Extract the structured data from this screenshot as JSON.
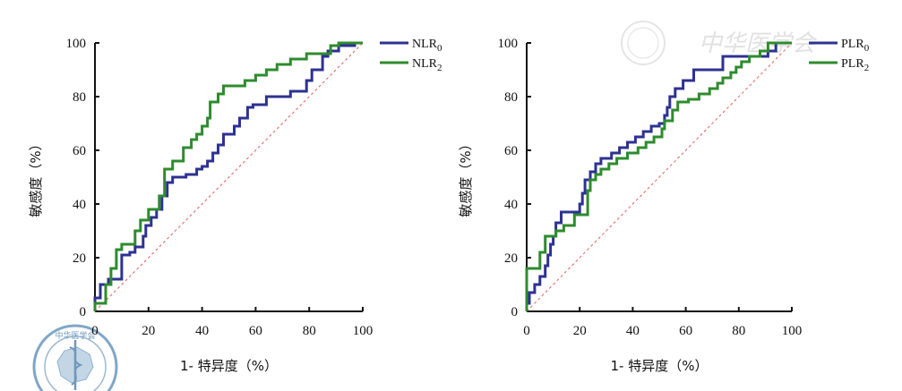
{
  "colors": {
    "series0": "#2e3192",
    "series1": "#2e8b2e",
    "diagonal": "#e06060",
    "axis": "#111111"
  },
  "watermark": {
    "text": "中华医学会",
    "seal_text": "中华医学会"
  },
  "chart_data": [
    {
      "type": "line",
      "xlabel": "1- 特异度（%）",
      "ylabel": "敏感度（%）",
      "xlim": [
        0,
        100
      ],
      "ylim": [
        0,
        100
      ],
      "xticks": [
        "0",
        "20",
        "40",
        "60",
        "80",
        "100"
      ],
      "yticks": [
        "0",
        "20",
        "40",
        "60",
        "80",
        "100"
      ],
      "legend": {
        "position": "top-right"
      },
      "series": [
        {
          "name": "NLR0",
          "label_main": "NLR",
          "label_sub": "0",
          "points": [
            [
              0,
              0
            ],
            [
              0,
              5
            ],
            [
              2,
              5
            ],
            [
              2,
              10
            ],
            [
              5,
              10
            ],
            [
              5,
              12
            ],
            [
              10,
              12
            ],
            [
              10,
              21
            ],
            [
              13,
              21
            ],
            [
              13,
              22
            ],
            [
              15,
              22
            ],
            [
              15,
              24
            ],
            [
              18,
              24
            ],
            [
              18,
              28
            ],
            [
              19,
              28
            ],
            [
              19,
              32
            ],
            [
              21,
              32
            ],
            [
              21,
              35
            ],
            [
              23,
              35
            ],
            [
              23,
              38
            ],
            [
              25,
              38
            ],
            [
              25,
              43
            ],
            [
              27,
              43
            ],
            [
              27,
              48
            ],
            [
              29,
              48
            ],
            [
              29,
              50
            ],
            [
              34,
              50
            ],
            [
              34,
              51
            ],
            [
              38,
              51
            ],
            [
              38,
              53
            ],
            [
              40,
              53
            ],
            [
              40,
              54
            ],
            [
              42,
              54
            ],
            [
              42,
              56
            ],
            [
              44,
              56
            ],
            [
              44,
              59
            ],
            [
              46,
              59
            ],
            [
              46,
              62
            ],
            [
              48,
              62
            ],
            [
              48,
              66
            ],
            [
              52,
              66
            ],
            [
              52,
              69
            ],
            [
              54,
              69
            ],
            [
              54,
              72
            ],
            [
              57,
              72
            ],
            [
              57,
              76
            ],
            [
              59,
              76
            ],
            [
              59,
              77
            ],
            [
              64,
              77
            ],
            [
              64,
              80
            ],
            [
              73,
              80
            ],
            [
              73,
              82
            ],
            [
              79,
              82
            ],
            [
              79,
              86
            ],
            [
              81,
              86
            ],
            [
              81,
              90
            ],
            [
              85,
              90
            ],
            [
              85,
              95
            ],
            [
              87,
              95
            ],
            [
              87,
              97
            ],
            [
              91,
              97
            ],
            [
              91,
              99
            ],
            [
              97,
              99
            ],
            [
              97,
              100
            ],
            [
              100,
              100
            ]
          ]
        },
        {
          "name": "NLR2",
          "label_main": "NLR",
          "label_sub": "2",
          "points": [
            [
              0,
              0
            ],
            [
              0,
              3
            ],
            [
              4,
              3
            ],
            [
              4,
              10
            ],
            [
              6,
              10
            ],
            [
              6,
              16
            ],
            [
              8,
              16
            ],
            [
              8,
              23
            ],
            [
              10,
              23
            ],
            [
              10,
              25
            ],
            [
              15,
              25
            ],
            [
              15,
              30
            ],
            [
              17,
              30
            ],
            [
              17,
              34
            ],
            [
              20,
              34
            ],
            [
              20,
              38
            ],
            [
              24,
              38
            ],
            [
              24,
              43
            ],
            [
              26,
              43
            ],
            [
              26,
              53
            ],
            [
              29,
              53
            ],
            [
              29,
              56
            ],
            [
              33,
              56
            ],
            [
              33,
              61
            ],
            [
              36,
              61
            ],
            [
              36,
              64
            ],
            [
              38,
              64
            ],
            [
              38,
              66
            ],
            [
              40,
              66
            ],
            [
              40,
              69
            ],
            [
              42,
              69
            ],
            [
              42,
              72
            ],
            [
              43,
              72
            ],
            [
              43,
              78
            ],
            [
              46,
              78
            ],
            [
              46,
              81
            ],
            [
              48,
              81
            ],
            [
              48,
              84
            ],
            [
              56,
              84
            ],
            [
              56,
              86
            ],
            [
              60,
              86
            ],
            [
              60,
              88
            ],
            [
              64,
              88
            ],
            [
              64,
              90
            ],
            [
              68,
              90
            ],
            [
              68,
              92
            ],
            [
              73,
              92
            ],
            [
              73,
              94
            ],
            [
              79,
              94
            ],
            [
              79,
              96
            ],
            [
              88,
              96
            ],
            [
              88,
              99
            ],
            [
              91,
              99
            ],
            [
              91,
              100
            ],
            [
              100,
              100
            ]
          ]
        }
      ]
    },
    {
      "type": "line",
      "xlabel": "1- 特异度（%）",
      "ylabel": "敏感度（%）",
      "xlim": [
        0,
        100
      ],
      "ylim": [
        0,
        100
      ],
      "xticks": [
        "0",
        "20",
        "40",
        "60",
        "80",
        "100"
      ],
      "yticks": [
        "0",
        "20",
        "40",
        "60",
        "80",
        "100"
      ],
      "legend": {
        "position": "top-right"
      },
      "series": [
        {
          "name": "PLR0",
          "label_main": "PLR",
          "label_sub": "0",
          "points": [
            [
              0,
              0
            ],
            [
              0,
              3
            ],
            [
              1,
              3
            ],
            [
              1,
              7
            ],
            [
              3,
              7
            ],
            [
              3,
              10
            ],
            [
              5,
              10
            ],
            [
              5,
              13
            ],
            [
              7,
              13
            ],
            [
              7,
              17
            ],
            [
              8,
              17
            ],
            [
              8,
              21
            ],
            [
              9,
              21
            ],
            [
              9,
              25
            ],
            [
              10,
              25
            ],
            [
              10,
              28
            ],
            [
              11,
              28
            ],
            [
              11,
              33
            ],
            [
              13,
              33
            ],
            [
              13,
              37
            ],
            [
              20,
              37
            ],
            [
              20,
              40
            ],
            [
              21,
              40
            ],
            [
              21,
              44
            ],
            [
              22,
              44
            ],
            [
              22,
              49
            ],
            [
              24,
              49
            ],
            [
              24,
              52
            ],
            [
              26,
              52
            ],
            [
              26,
              55
            ],
            [
              28,
              55
            ],
            [
              28,
              57
            ],
            [
              32,
              57
            ],
            [
              32,
              59
            ],
            [
              35,
              59
            ],
            [
              35,
              61
            ],
            [
              38,
              61
            ],
            [
              38,
              63
            ],
            [
              41,
              63
            ],
            [
              41,
              65
            ],
            [
              44,
              65
            ],
            [
              44,
              67
            ],
            [
              47,
              67
            ],
            [
              47,
              69
            ],
            [
              50,
              69
            ],
            [
              50,
              70
            ],
            [
              52,
              70
            ],
            [
              52,
              73
            ],
            [
              53,
              73
            ],
            [
              53,
              76
            ],
            [
              54,
              76
            ],
            [
              54,
              80
            ],
            [
              56,
              80
            ],
            [
              56,
              83
            ],
            [
              59,
              83
            ],
            [
              59,
              86
            ],
            [
              63,
              86
            ],
            [
              63,
              90
            ],
            [
              74,
              90
            ],
            [
              74,
              95
            ],
            [
              91,
              95
            ],
            [
              91,
              97
            ],
            [
              94,
              97
            ],
            [
              94,
              100
            ],
            [
              100,
              100
            ]
          ]
        },
        {
          "name": "PLR2",
          "label_main": "PLR",
          "label_sub": "2",
          "points": [
            [
              0,
              0
            ],
            [
              0,
              16
            ],
            [
              5,
              16
            ],
            [
              5,
              22
            ],
            [
              7,
              22
            ],
            [
              7,
              28
            ],
            [
              11,
              28
            ],
            [
              11,
              30
            ],
            [
              14,
              30
            ],
            [
              14,
              32
            ],
            [
              18,
              32
            ],
            [
              18,
              36
            ],
            [
              23,
              36
            ],
            [
              23,
              45
            ],
            [
              24,
              45
            ],
            [
              24,
              49
            ],
            [
              26,
              49
            ],
            [
              26,
              51
            ],
            [
              28,
              51
            ],
            [
              28,
              53
            ],
            [
              31,
              53
            ],
            [
              31,
              55
            ],
            [
              34,
              55
            ],
            [
              34,
              57
            ],
            [
              38,
              57
            ],
            [
              38,
              59
            ],
            [
              42,
              59
            ],
            [
              42,
              61
            ],
            [
              45,
              61
            ],
            [
              45,
              63
            ],
            [
              48,
              63
            ],
            [
              48,
              65
            ],
            [
              51,
              65
            ],
            [
              51,
              68
            ],
            [
              52,
              68
            ],
            [
              52,
              71
            ],
            [
              55,
              71
            ],
            [
              55,
              75
            ],
            [
              57,
              75
            ],
            [
              57,
              78
            ],
            [
              61,
              78
            ],
            [
              61,
              79
            ],
            [
              65,
              79
            ],
            [
              65,
              81
            ],
            [
              69,
              81
            ],
            [
              69,
              83
            ],
            [
              72,
              83
            ],
            [
              72,
              85
            ],
            [
              74,
              85
            ],
            [
              74,
              87
            ],
            [
              77,
              87
            ],
            [
              77,
              89
            ],
            [
              79,
              89
            ],
            [
              79,
              91
            ],
            [
              81,
              91
            ],
            [
              81,
              93
            ],
            [
              84,
              93
            ],
            [
              84,
              95
            ],
            [
              88,
              95
            ],
            [
              88,
              97
            ],
            [
              91,
              97
            ],
            [
              91,
              100
            ],
            [
              100,
              100
            ]
          ]
        }
      ]
    }
  ]
}
